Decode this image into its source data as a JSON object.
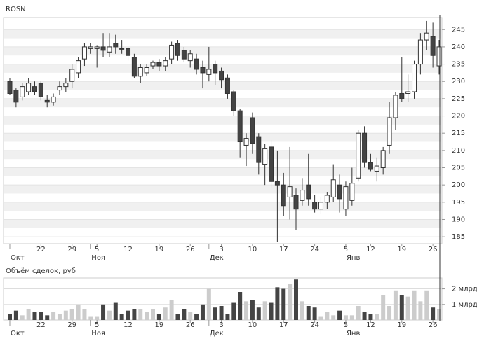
{
  "chart_data": [
    {
      "type": "candlestick",
      "title": "ROSN",
      "categories": [
        "",
        "",
        "",
        "",
        "",
        "22",
        "",
        "",
        "",
        "",
        "29",
        "",
        "",
        "",
        "5",
        "",
        "",
        "",
        "",
        "12",
        "",
        "",
        "",
        "",
        "19",
        "",
        "",
        "",
        "",
        "26",
        "",
        "",
        "",
        "",
        "3",
        "",
        "",
        "",
        "",
        "10",
        "",
        "",
        "",
        "",
        "17",
        "",
        "",
        "",
        "",
        "24",
        "",
        "",
        "",
        "",
        "5",
        "",
        "",
        "",
        "12",
        "",
        "",
        "",
        "",
        "19",
        "",
        "",
        "",
        "",
        "26",
        ""
      ],
      "months": [
        "Окт",
        null,
        null,
        null,
        null,
        null,
        null,
        null,
        null,
        null,
        null,
        null,
        null,
        "Ноя",
        null,
        null,
        null,
        null,
        null,
        null,
        null,
        null,
        null,
        null,
        null,
        null,
        null,
        null,
        null,
        null,
        null,
        null,
        "Дек",
        null,
        null,
        null,
        null,
        null,
        null,
        null,
        null,
        null,
        null,
        null,
        null,
        null,
        null,
        null,
        null,
        null,
        null,
        null,
        null,
        null,
        "Янв",
        null,
        null,
        null,
        null,
        null,
        null,
        null,
        null,
        null,
        null,
        null,
        null,
        null,
        null,
        null
      ],
      "open": [
        230,
        227.5,
        225.5,
        227,
        228.5,
        229.5,
        224.5,
        224,
        227.5,
        228.5,
        230,
        232.5,
        236.5,
        239.5,
        239.5,
        240,
        238.5,
        241,
        239.5,
        239.5,
        237,
        231.5,
        232.5,
        234.5,
        235.5,
        234.5,
        236.5,
        241,
        239,
        236,
        236.5,
        234,
        232,
        235,
        233,
        231,
        227,
        221.5,
        211.5,
        219.5,
        214,
        206,
        211,
        201,
        200,
        196.5,
        197,
        195.5,
        200,
        195,
        193,
        195,
        196.5,
        200,
        193,
        195.5,
        202,
        215,
        206.5,
        204,
        205,
        211.5,
        219.5,
        226.5,
        226.5,
        227,
        235,
        242,
        243,
        234.5
      ],
      "high": [
        231,
        228,
        229.5,
        231,
        230,
        230,
        226,
        226.5,
        230,
        231,
        235,
        237,
        241,
        241,
        240.5,
        244,
        244,
        243.5,
        242,
        240,
        238,
        235,
        235,
        236,
        236.5,
        237,
        241.5,
        242,
        240,
        239,
        238,
        236,
        240,
        236,
        234,
        232,
        227.5,
        222,
        215,
        221,
        215,
        212,
        213,
        210,
        203.5,
        211,
        199,
        202,
        209,
        197,
        196.5,
        198,
        206,
        203,
        201,
        205,
        216,
        217,
        209,
        208,
        211,
        224,
        227,
        237,
        232,
        236,
        244,
        247.5,
        247,
        242
      ],
      "low": [
        226,
        222.5,
        224.5,
        226,
        226,
        224.5,
        222.5,
        223,
        226,
        227,
        228,
        231,
        234.5,
        238,
        234,
        237,
        237,
        238,
        238,
        236,
        231,
        229.5,
        231.5,
        233.5,
        233,
        233,
        235,
        236,
        235.5,
        234,
        232,
        228,
        230,
        229,
        228,
        225,
        220,
        208,
        205.5,
        209,
        203,
        200,
        199,
        183.5,
        191,
        190,
        187,
        194,
        194,
        192,
        191.5,
        193,
        195,
        192,
        191,
        194,
        201,
        205,
        204,
        201,
        203,
        209,
        216,
        224,
        224,
        225,
        232,
        239,
        234,
        232
      ],
      "close": [
        226.5,
        224,
        228.5,
        229.5,
        227,
        225.5,
        224,
        225.5,
        228.5,
        229.5,
        233.5,
        236,
        240,
        240,
        240,
        239,
        240,
        240,
        239.3,
        237.5,
        231.5,
        234,
        234,
        235.5,
        234.5,
        236,
        240.5,
        237.5,
        236.5,
        238,
        233.5,
        232.5,
        233.5,
        232.5,
        230.5,
        226.5,
        221.5,
        212.5,
        213.5,
        212,
        206.5,
        210.5,
        201,
        200,
        194,
        199.5,
        193,
        198.5,
        196,
        193,
        195,
        197,
        201.5,
        196,
        199.5,
        200.5,
        215,
        206.5,
        204.5,
        205.5,
        210,
        219.5,
        226,
        225,
        227,
        235,
        242,
        244,
        237.5,
        240
      ],
      "up_color": "#ffffff",
      "down_color": "#444444",
      "outline_color": "#333333",
      "ylim": [
        183,
        248.5
      ],
      "yticks": [
        185,
        190,
        195,
        200,
        205,
        210,
        215,
        220,
        225,
        230,
        235,
        240,
        245
      ]
    },
    {
      "type": "volume",
      "title": "Объём сделок, руб",
      "categories": [
        "",
        "",
        "",
        "",
        "",
        "22",
        "",
        "",
        "",
        "",
        "29",
        "",
        "",
        "",
        "5",
        "",
        "",
        "",
        "",
        "12",
        "",
        "",
        "",
        "",
        "19",
        "",
        "",
        "",
        "",
        "26",
        "",
        "",
        "",
        "",
        "3",
        "",
        "",
        "",
        "",
        "10",
        "",
        "",
        "",
        "",
        "17",
        "",
        "",
        "",
        "",
        "24",
        "",
        "",
        "",
        "",
        "5",
        "",
        "",
        "",
        "12",
        "",
        "",
        "",
        "",
        "19",
        "",
        "",
        "",
        "",
        "26",
        ""
      ],
      "months": [
        "Окт",
        null,
        null,
        null,
        null,
        null,
        null,
        null,
        null,
        null,
        null,
        null,
        null,
        "Ноя",
        null,
        null,
        null,
        null,
        null,
        null,
        null,
        null,
        null,
        null,
        null,
        null,
        null,
        null,
        null,
        null,
        null,
        null,
        "Дек",
        null,
        null,
        null,
        null,
        null,
        null,
        null,
        null,
        null,
        null,
        null,
        null,
        null,
        null,
        null,
        null,
        null,
        null,
        null,
        null,
        null,
        "Янв",
        null,
        null,
        null,
        null,
        null,
        null,
        null,
        null,
        null,
        null,
        null,
        null,
        null,
        null,
        null
      ],
      "values": [
        0.4,
        0.6,
        0.3,
        0.7,
        0.5,
        0.5,
        0.3,
        0.5,
        0.4,
        0.6,
        0.7,
        1.0,
        0.7,
        0.2,
        0.2,
        1.0,
        0.6,
        1.1,
        0.4,
        0.6,
        0.7,
        0.7,
        0.5,
        0.7,
        0.4,
        0.8,
        1.3,
        0.4,
        0.7,
        0.5,
        0.4,
        1.0,
        2.0,
        0.8,
        0.9,
        0.4,
        1.1,
        1.8,
        1.2,
        1.3,
        0.8,
        1.2,
        1.1,
        2.1,
        2.0,
        2.3,
        2.6,
        1.2,
        0.9,
        0.8,
        0.2,
        0.5,
        0.3,
        0.6,
        0.3,
        0.3,
        0.9,
        0.5,
        0.4,
        0.4,
        1.6,
        0.9,
        1.9,
        1.6,
        1.5,
        1.9,
        1.2,
        1.9,
        0.8,
        0.7
      ],
      "up_color": "#cccccc",
      "down_color": "#444444",
      "ylim": [
        0,
        2.7
      ],
      "yticks": [
        {
          "value": 1,
          "label": "1 млрд"
        },
        {
          "value": 2,
          "label": "2 млрд"
        }
      ]
    }
  ]
}
